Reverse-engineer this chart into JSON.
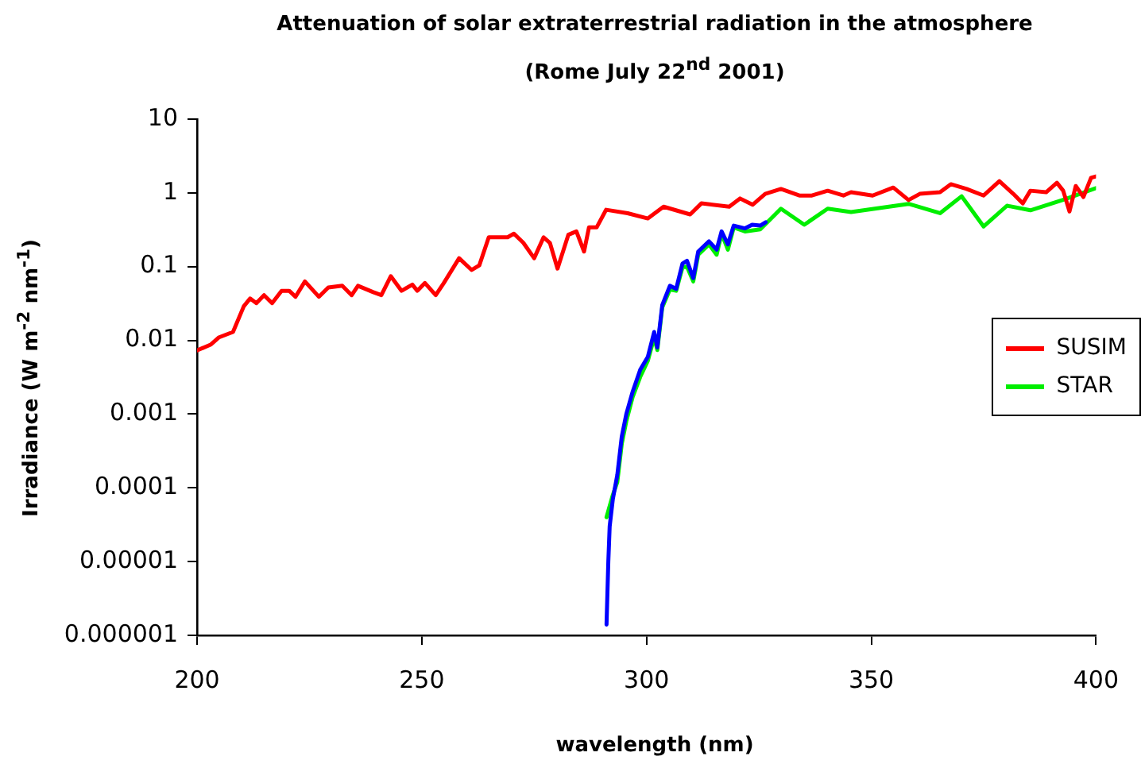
{
  "chart_data": {
    "type": "line",
    "title": "Attenuation of solar extraterrestrial radiation in the atmosphere",
    "subtitle": "(Rome July 22$^{nd}$ 2001)",
    "xlabel": "wavelength (nm)",
    "ylabel": "Irradiance (W m$^{-2}$ nm$^{-1}$)",
    "log": "y",
    "xlim": [
      200,
      400
    ],
    "xticks": [
      200,
      250,
      300,
      350,
      400
    ],
    "ylim": [
      1e-06,
      10
    ],
    "yticks": [
      {
        "value": 1e-06,
        "label": "0.000001"
      },
      {
        "value": 1e-05,
        "label": "0.00001"
      },
      0.0001,
      0.001,
      0.01,
      0.1,
      1,
      10
    ],
    "grid": false,
    "legend": "right",
    "marker": "none",
    "line_style": "solid",
    "series": [
      {
        "name": "SUSIM",
        "color": "#ff0000",
        "x": [
          200,
          203.1,
          204.9,
          208,
          210.4,
          211.8,
          213.2,
          214.9,
          216.7,
          218.8,
          220.5,
          221.9,
          224,
          227.1,
          229.2,
          232.3,
          234.4,
          235.8,
          239.2,
          241,
          243.1,
          245.5,
          247.9,
          249,
          250.7,
          253.1,
          254.9,
          258.3,
          261.1,
          262.8,
          264.9,
          269.1,
          270.5,
          272.6,
          275,
          277.1,
          278.5,
          280.2,
          282.6,
          284.4,
          286.1,
          287.2,
          288.9,
          291,
          295.8,
          300.3,
          303.8,
          309.7,
          312.2,
          318.4,
          320.8,
          323.6,
          326.4,
          329.9,
          334,
          336.8,
          340.3,
          343.8,
          345.5,
          350.3,
          354.9,
          358.3,
          360.8,
          365.3,
          367.7,
          371.2,
          375,
          378.5,
          381.6,
          383.7,
          385.4,
          388.9,
          391.3,
          392.7,
          394.1,
          395.5,
          397.2,
          398.9,
          400
        ],
        "values": [
          0.0073,
          0.0088,
          0.011,
          0.013,
          0.029,
          0.037,
          0.032,
          0.041,
          0.032,
          0.047,
          0.047,
          0.039,
          0.063,
          0.039,
          0.052,
          0.055,
          0.041,
          0.055,
          0.045,
          0.041,
          0.074,
          0.047,
          0.057,
          0.047,
          0.06,
          0.041,
          0.06,
          0.13,
          0.09,
          0.104,
          0.25,
          0.25,
          0.28,
          0.21,
          0.13,
          0.25,
          0.21,
          0.094,
          0.27,
          0.3,
          0.16,
          0.34,
          0.34,
          0.59,
          0.53,
          0.45,
          0.65,
          0.51,
          0.72,
          0.65,
          0.84,
          0.69,
          0.97,
          1.13,
          0.92,
          0.92,
          1.07,
          0.92,
          1.02,
          0.92,
          1.18,
          0.8,
          0.97,
          1.02,
          1.31,
          1.13,
          0.92,
          1.44,
          0.97,
          0.72,
          1.07,
          1.02,
          1.37,
          1.07,
          0.56,
          1.24,
          0.88,
          1.6,
          1.67
        ]
      },
      {
        "color": "#0000ff",
        "x": [
          291.1,
          291.5,
          291.8,
          292.5,
          293.5,
          294.5,
          295.5,
          296.9,
          298.6,
          300.3,
          301.7,
          302.4,
          303.5,
          305.2,
          306.6,
          308,
          309,
          310.4,
          311.5,
          313.9,
          315.6,
          316.7,
          318.1,
          319.4,
          321.9,
          323.5,
          325.3,
          326.5
        ],
        "values": [
          1.4e-06,
          1e-05,
          3e-05,
          7e-05,
          0.00015,
          0.0005,
          0.001,
          0.002,
          0.004,
          0.006,
          0.013,
          0.008,
          0.03,
          0.055,
          0.05,
          0.11,
          0.12,
          0.07,
          0.16,
          0.22,
          0.17,
          0.3,
          0.2,
          0.36,
          0.33,
          0.37,
          0.36,
          0.4
        ]
      },
      {
        "name": "STAR",
        "color": "#00ee00",
        "x": [
          291.1,
          292.5,
          293.5,
          294.5,
          295.5,
          296.9,
          298.6,
          300.3,
          301.7,
          302.4,
          303.5,
          305.2,
          306.6,
          308,
          309,
          310.4,
          311.5,
          313.9,
          315.6,
          316.7,
          318.1,
          319.4,
          321.9,
          325.3,
          329.9,
          335.1,
          340.3,
          345.5,
          358.3,
          365.3,
          370.1,
          375,
          380.2,
          385.4,
          393.1,
          400
        ],
        "values": [
          4e-05,
          8e-05,
          0.00012,
          0.0004,
          0.0008,
          0.0017,
          0.0032,
          0.0053,
          0.011,
          0.0074,
          0.028,
          0.049,
          0.047,
          0.098,
          0.1,
          0.063,
          0.145,
          0.2,
          0.145,
          0.28,
          0.17,
          0.34,
          0.3,
          0.32,
          0.61,
          0.37,
          0.61,
          0.55,
          0.71,
          0.53,
          0.9,
          0.35,
          0.67,
          0.58,
          0.82,
          1.16
        ]
      }
    ]
  }
}
